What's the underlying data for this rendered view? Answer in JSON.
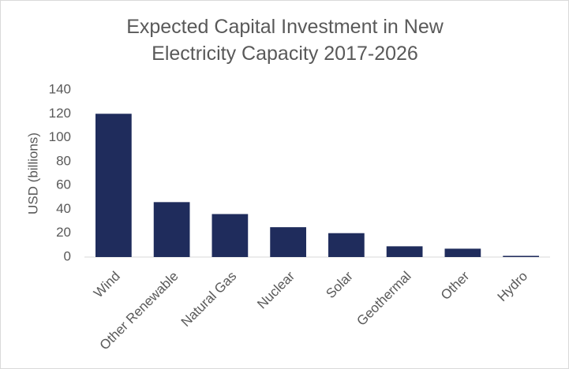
{
  "chart_data": {
    "type": "bar",
    "title": "Expected Capital Investment in New Electricity Capacity 2017-2026",
    "y_label": "USD (billions)",
    "categories": [
      "Wind",
      "Other Renewable",
      "Natural Gas",
      "Nuclear",
      "Solar",
      "Geothermal",
      "Other",
      "Hydro"
    ],
    "values": [
      120,
      46,
      36,
      25,
      20,
      9,
      7,
      1
    ],
    "color": "#1f2c5c",
    "ylim": [
      0,
      140
    ],
    "yticks": [
      0,
      20,
      40,
      60,
      80,
      100,
      120,
      140
    ],
    "grid": false
  }
}
